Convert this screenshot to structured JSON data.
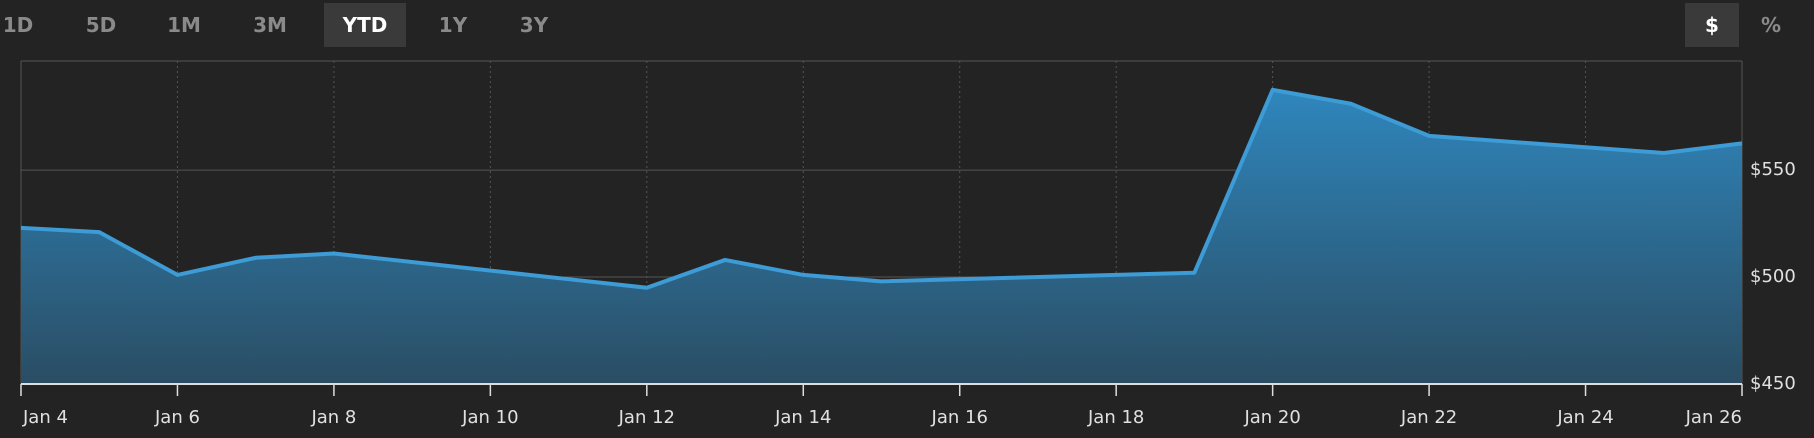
{
  "range_buttons": [
    "1D",
    "5D",
    "1M",
    "3M",
    "YTD",
    "1Y",
    "3Y"
  ],
  "active_range": "YTD",
  "unit_buttons": [
    "$",
    "%"
  ],
  "active_unit": "$",
  "chart_data": {
    "type": "area",
    "x": [
      "Jan 4",
      "Jan 5",
      "Jan 6",
      "Jan 7",
      "Jan 8",
      "Jan 11",
      "Jan 12",
      "Jan 13",
      "Jan 14",
      "Jan 15",
      "Jan 19",
      "Jan 20",
      "Jan 21",
      "Jan 22",
      "Jan 25",
      "Jan 26"
    ],
    "values": [
      523,
      521,
      501,
      509,
      511,
      499,
      495,
      508,
      501,
      498,
      502,
      587.5,
      581,
      566,
      558,
      562.5
    ],
    "color": "#3d9bd6",
    "xlim": [
      "Jan 4",
      "Jan 26"
    ],
    "xticks": [
      "Jan 4",
      "Jan 6",
      "Jan 8",
      "Jan 10",
      "Jan 12",
      "Jan 14",
      "Jan 16",
      "Jan 18",
      "Jan 20",
      "Jan 22",
      "Jan 24",
      "Jan 26"
    ],
    "ylim": [
      450,
      601
    ],
    "yticks": [
      {
        "value": 450,
        "label": "$450"
      },
      {
        "value": 500,
        "label": "$500"
      },
      {
        "value": 550,
        "label": "$550"
      }
    ],
    "grid": true
  }
}
